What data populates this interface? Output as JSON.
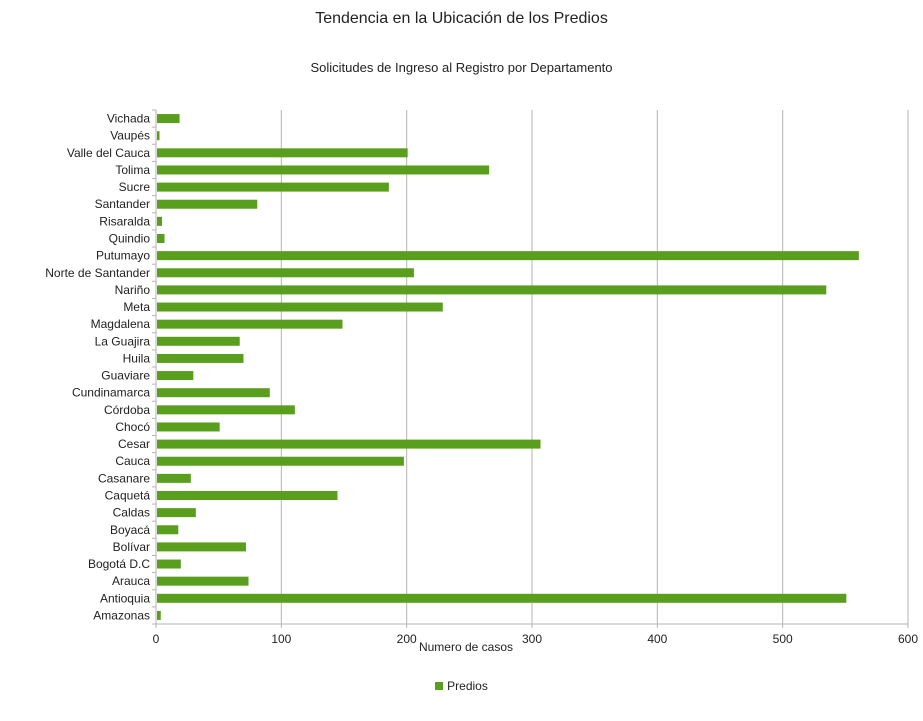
{
  "chart_data": {
    "type": "bar",
    "orientation": "horizontal",
    "title": "Tendencia en la Ubicación de los Predios",
    "subtitle": "Solicitudes de Ingreso al Registro por Departamento",
    "xlabel": "Numero de casos",
    "ylabel": "",
    "xlim": [
      0,
      600
    ],
    "xticks": [
      0,
      100,
      200,
      300,
      400,
      500,
      600
    ],
    "grid": true,
    "legend_position": "bottom",
    "bar_color": "#5a9e1e",
    "categories": [
      "Amazonas",
      "Antioquia",
      "Arauca",
      "Bogotá D.C",
      "Bolívar",
      "Boyacá",
      "Caldas",
      "Caquetá",
      "Casanare",
      "Cauca",
      "Cesar",
      "Chocó",
      "Córdoba",
      "Cundinamarca",
      "Guaviare",
      "Huila",
      "La Guajira",
      "Magdalena",
      "Meta",
      "Nariño",
      "Norte de Santander",
      "Putumayo",
      "Quindio",
      "Risaralda",
      "Santander",
      "Sucre",
      "Tolima",
      "Valle del Cauca",
      "Vaupés",
      "Vichada"
    ],
    "series": [
      {
        "name": "Predios",
        "values": [
          3,
          550,
          73,
          19,
          71,
          17,
          31,
          144,
          27,
          197,
          306,
          50,
          110,
          90,
          29,
          69,
          66,
          148,
          228,
          534,
          205,
          560,
          6,
          4,
          80,
          185,
          265,
          200,
          2,
          18
        ]
      }
    ]
  }
}
